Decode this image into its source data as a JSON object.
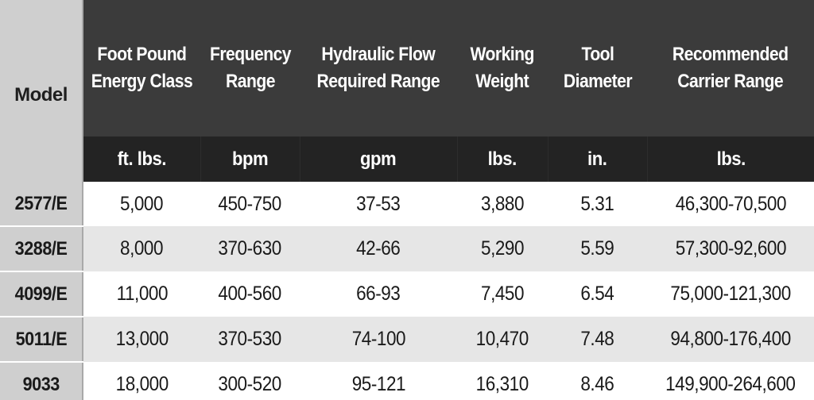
{
  "table": {
    "model_header": "Model",
    "columns": [
      {
        "title": "Foot Pound\nEnergy Class",
        "unit": "ft. lbs."
      },
      {
        "title": "Frequency\nRange",
        "unit": "bpm"
      },
      {
        "title": "Hydraulic Flow\nRequired Range",
        "unit": "gpm"
      },
      {
        "title": "Working\nWeight",
        "unit": "lbs."
      },
      {
        "title": "Tool\nDiameter",
        "unit": "in."
      },
      {
        "title": "Recommended\nCarrier Range",
        "unit": "lbs."
      }
    ],
    "rows": [
      {
        "model": "2577/E",
        "values": [
          "5,000",
          "450-750",
          "37-53",
          "3,880",
          "5.31",
          "46,300-70,500"
        ]
      },
      {
        "model": "3288/E",
        "values": [
          "8,000",
          "370-630",
          "42-66",
          "5,290",
          "5.59",
          "57,300-92,600"
        ]
      },
      {
        "model": "4099/E",
        "values": [
          "11,000",
          "400-560",
          "66-93",
          "7,450",
          "6.54",
          "75,000-121,300"
        ]
      },
      {
        "model": "5011/E",
        "values": [
          "13,000",
          "370-530",
          "74-100",
          "10,470",
          "7.48",
          "94,800-176,400"
        ]
      },
      {
        "model": "9033",
        "values": [
          "18,000",
          "300-520",
          "95-121",
          "16,310",
          "8.46",
          "149,900-264,600"
        ]
      }
    ]
  },
  "colors": {
    "header_dark": "#3b3b3b",
    "unit_row": "#232323",
    "model_column": "#cfcfcf",
    "stripe": "#e6e6e6"
  }
}
